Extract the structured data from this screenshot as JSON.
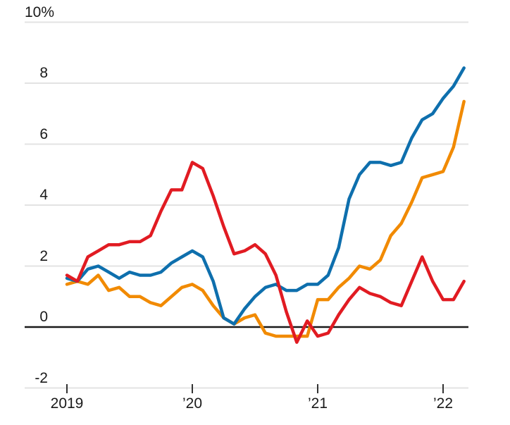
{
  "chart_data": {
    "type": "line",
    "title": "",
    "xlabel": "",
    "ylabel": "",
    "unit": "percent",
    "frequency": "monthly",
    "x_start": "2019-01",
    "x_end": "2022-03",
    "ylim": [
      -2,
      10
    ],
    "grid": "horizontal",
    "legend_position": "none",
    "zero_baseline": true,
    "yticks": [
      {
        "label": "10%",
        "value": 10
      },
      {
        "label": "8",
        "value": 8
      },
      {
        "label": "6",
        "value": 6
      },
      {
        "label": "4",
        "value": 4
      },
      {
        "label": "2",
        "value": 2
      },
      {
        "label": "0",
        "value": 0
      },
      {
        "label": "-2",
        "value": -2
      }
    ],
    "xticks": [
      {
        "label": "2019",
        "month_index": 0
      },
      {
        "label": "’20",
        "month_index": 12
      },
      {
        "label": "’21",
        "month_index": 24
      },
      {
        "label": "’22",
        "month_index": 36
      }
    ],
    "series": [
      {
        "name": "orange-line",
        "color": "#f18a00",
        "values": [
          1.4,
          1.5,
          1.4,
          1.7,
          1.2,
          1.3,
          1.0,
          1.0,
          0.8,
          0.7,
          1.0,
          1.3,
          1.4,
          1.2,
          0.7,
          0.3,
          0.1,
          0.3,
          0.4,
          -0.2,
          -0.3,
          -0.3,
          -0.3,
          -0.3,
          0.9,
          0.9,
          1.3,
          1.6,
          2.0,
          1.9,
          2.2,
          3.0,
          3.4,
          4.1,
          4.9,
          5.0,
          5.1,
          5.9,
          7.4
        ]
      },
      {
        "name": "blue-line",
        "color": "#0e6fad",
        "values": [
          1.6,
          1.5,
          1.9,
          2.0,
          1.8,
          1.6,
          1.8,
          1.7,
          1.7,
          1.8,
          2.1,
          2.3,
          2.5,
          2.3,
          1.5,
          0.3,
          0.1,
          0.6,
          1.0,
          1.3,
          1.4,
          1.2,
          1.2,
          1.4,
          1.4,
          1.7,
          2.6,
          4.2,
          5.0,
          5.4,
          5.4,
          5.3,
          5.4,
          6.2,
          6.8,
          7.0,
          7.5,
          7.9,
          8.5
        ]
      },
      {
        "name": "red-line",
        "color": "#e11b22",
        "values": [
          1.7,
          1.5,
          2.3,
          2.5,
          2.7,
          2.7,
          2.8,
          2.8,
          3.0,
          3.8,
          4.5,
          4.5,
          5.4,
          5.2,
          4.3,
          3.3,
          2.4,
          2.5,
          2.7,
          2.4,
          1.7,
          0.5,
          -0.5,
          0.2,
          -0.3,
          -0.2,
          0.4,
          0.9,
          1.3,
          1.1,
          1.0,
          0.8,
          0.7,
          1.5,
          2.3,
          1.5,
          0.9,
          0.9,
          1.5
        ]
      }
    ],
    "style_colors": {
      "gridline": "#e3e3e3",
      "zero_line": "#1a1a1a",
      "axis_tick": "#333333",
      "tick_label": "#1a1a1a",
      "background": "#ffffff"
    }
  }
}
